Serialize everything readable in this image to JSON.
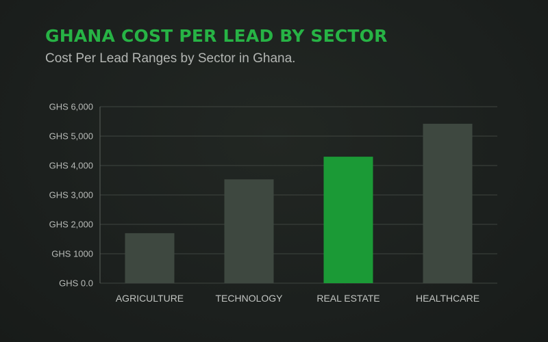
{
  "title": "GHANA COST PER LEAD BY SECTOR",
  "subtitle": "Cost Per Lead Ranges by Sector in Ghana.",
  "colors": {
    "bar_default": "#3e4840",
    "bar_highlight": "#1b9a36",
    "title": "#27b345"
  },
  "chart_data": {
    "type": "bar",
    "title": "GHANA COST PER LEAD BY SECTOR",
    "subtitle": "Cost Per Lead Ranges by Sector in Ghana.",
    "categories": [
      "AGRICULTURE",
      "TECHNOLOGY",
      "REAL ESTATE",
      "HEALTHCARE"
    ],
    "values": [
      1700,
      3530,
      4300,
      5420
    ],
    "highlight_index": 2,
    "ylim": [
      0,
      6000
    ],
    "yticks": [
      0,
      1000,
      2000,
      3000,
      4000,
      5000,
      6000
    ],
    "ytick_labels": [
      "GHS 0.0",
      "GHS 1000",
      "GHS 2,000",
      "GHS 3,000",
      "GHS 4,000",
      "GHS 5,000",
      "GHS 6,000"
    ],
    "xlabel": "",
    "ylabel": "",
    "grid": true,
    "legend": "none"
  }
}
